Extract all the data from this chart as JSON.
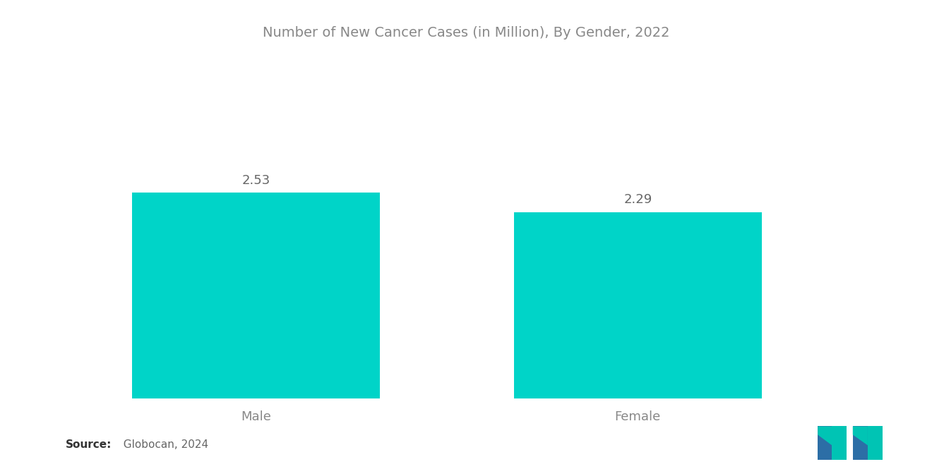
{
  "title": "Number of New Cancer Cases (in Million), By Gender, 2022",
  "categories": [
    "Male",
    "Female"
  ],
  "values": [
    2.53,
    2.29
  ],
  "bar_color": "#00D4C8",
  "background_color": "#ffffff",
  "title_color": "#888888",
  "label_color": "#888888",
  "value_color": "#666666",
  "title_fontsize": 14,
  "label_fontsize": 13,
  "value_fontsize": 13,
  "source_bold_text": "Source:",
  "source_normal_text": "  Globocan, 2024",
  "source_fontsize": 11,
  "ylim": [
    0,
    4.2
  ],
  "x_positions": [
    1,
    3
  ],
  "bar_width": 1.3,
  "xlim": [
    0.0,
    4.2
  ]
}
